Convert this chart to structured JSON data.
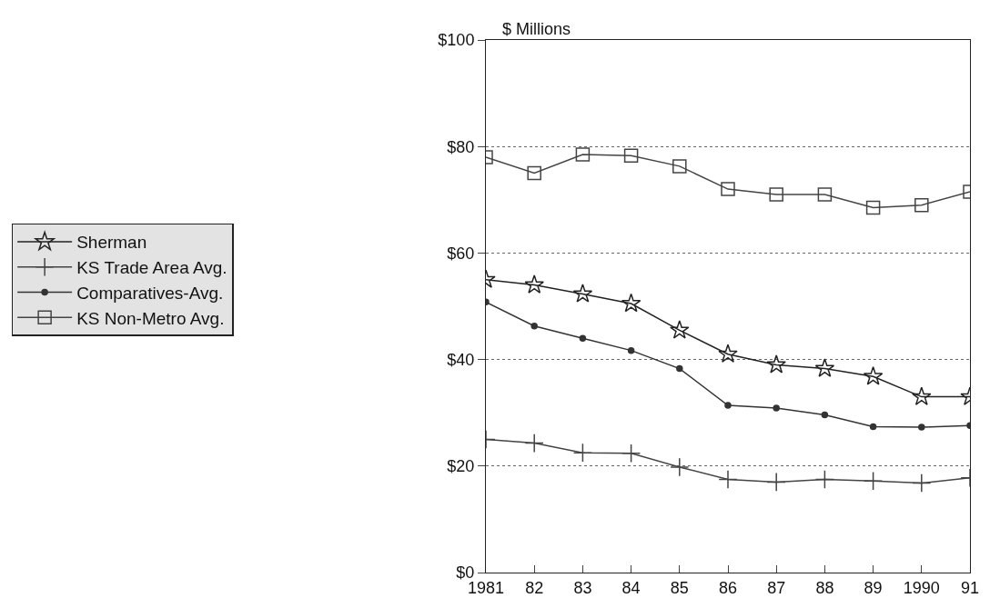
{
  "chart_data": {
    "type": "line",
    "ylabel": "$ Millions",
    "categories": [
      "1981",
      "82",
      "83",
      "84",
      "85",
      "86",
      "87",
      "88",
      "89",
      "1990",
      "91"
    ],
    "series": [
      {
        "name": "Sherman",
        "color": "#222222",
        "marker": "star",
        "values": [
          55,
          54,
          52.3,
          50.5,
          45.5,
          41,
          39,
          38.3,
          36.8,
          33,
          33
        ]
      },
      {
        "name": "KS Trade Area Avg.",
        "color": "#444444",
        "marker": "cross",
        "values": [
          25,
          24.3,
          22.5,
          22.4,
          19.8,
          17.5,
          17,
          17.5,
          17.2,
          16.8,
          17.8
        ]
      },
      {
        "name": "Comparatives-Avg.",
        "color": "#333333",
        "marker": "circle",
        "values": [
          50.8,
          46.3,
          44,
          41.7,
          38.3,
          31.4,
          30.9,
          29.6,
          27.4,
          27.3,
          27.6
        ]
      },
      {
        "name": "KS Non-Metro Avg.",
        "color": "#444444",
        "marker": "square",
        "values": [
          78,
          75,
          78.5,
          78.3,
          76.3,
          72,
          71,
          71,
          68.5,
          69,
          71.5
        ]
      }
    ],
    "ylim": [
      0,
      100
    ],
    "yticks": [
      {
        "value": 0,
        "label": "$0"
      },
      {
        "value": 20,
        "label": "$20"
      },
      {
        "value": 40,
        "label": "$40"
      },
      {
        "value": 60,
        "label": "$60"
      },
      {
        "value": 80,
        "label": "$80"
      },
      {
        "value": 100,
        "label": "$100"
      }
    ],
    "grid": "y",
    "legend": "left",
    "line_style": "solid"
  }
}
